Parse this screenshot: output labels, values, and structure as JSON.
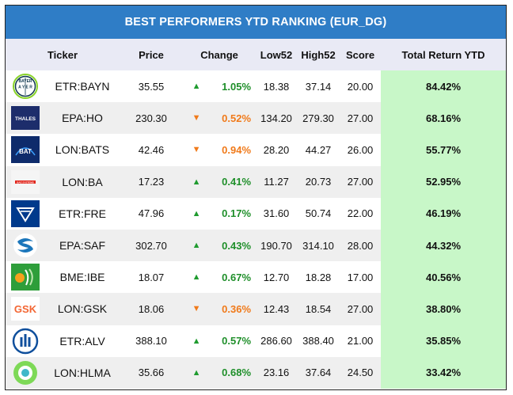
{
  "title": "BEST PERFORMERS YTD RANKING (EUR_DG)",
  "columns": {
    "ticker": "Ticker",
    "price": "Price",
    "change": "Change",
    "low52": "Low52",
    "high52": "High52",
    "score": "Score",
    "total": "Total Return YTD"
  },
  "colors": {
    "header": "#2f7dc6",
    "up": "#1f9b2f",
    "down": "#f07a1a",
    "total_bg": "#c8f7c8"
  },
  "rows": [
    {
      "logo": "bayer-logo-icon",
      "ticker": "ETR:BAYN",
      "price": "35.55",
      "direction": "up",
      "arrow": "▲",
      "change": "1.05%",
      "low52": "18.38",
      "high52": "37.14",
      "score": "20.00",
      "total": "84.42%"
    },
    {
      "logo": "thales-logo-icon",
      "ticker": "EPA:HO",
      "price": "230.30",
      "direction": "down",
      "arrow": "▼",
      "change": "0.52%",
      "low52": "134.20",
      "high52": "279.30",
      "score": "27.00",
      "total": "68.16%"
    },
    {
      "logo": "bat-logo-icon",
      "ticker": "LON:BATS",
      "price": "42.46",
      "direction": "down",
      "arrow": "▼",
      "change": "0.94%",
      "low52": "28.20",
      "high52": "44.27",
      "score": "26.00",
      "total": "55.77%"
    },
    {
      "logo": "bae-systems-logo-icon",
      "ticker": "LON:BA",
      "price": "17.23",
      "direction": "up",
      "arrow": "▲",
      "change": "0.41%",
      "low52": "11.27",
      "high52": "20.73",
      "score": "27.00",
      "total": "52.95%"
    },
    {
      "logo": "fresenius-logo-icon",
      "ticker": "ETR:FRE",
      "price": "47.96",
      "direction": "up",
      "arrow": "▲",
      "change": "0.17%",
      "low52": "31.60",
      "high52": "50.74",
      "score": "22.00",
      "total": "46.19%"
    },
    {
      "logo": "safran-logo-icon",
      "ticker": "EPA:SAF",
      "price": "302.70",
      "direction": "up",
      "arrow": "▲",
      "change": "0.43%",
      "low52": "190.70",
      "high52": "314.10",
      "score": "28.00",
      "total": "44.32%"
    },
    {
      "logo": "iberdrola-logo-icon",
      "ticker": "BME:IBE",
      "price": "18.07",
      "direction": "up",
      "arrow": "▲",
      "change": "0.67%",
      "low52": "12.70",
      "high52": "18.28",
      "score": "17.00",
      "total": "40.56%"
    },
    {
      "logo": "gsk-logo-icon",
      "ticker": "LON:GSK",
      "price": "18.06",
      "direction": "down",
      "arrow": "▼",
      "change": "0.36%",
      "low52": "12.43",
      "high52": "18.54",
      "score": "27.00",
      "total": "38.80%"
    },
    {
      "logo": "allianz-logo-icon",
      "ticker": "ETR:ALV",
      "price": "388.10",
      "direction": "up",
      "arrow": "▲",
      "change": "0.57%",
      "low52": "286.60",
      "high52": "388.40",
      "score": "21.00",
      "total": "35.85%"
    },
    {
      "logo": "halma-logo-icon",
      "ticker": "LON:HLMA",
      "price": "35.66",
      "direction": "up",
      "arrow": "▲",
      "change": "0.68%",
      "low52": "23.16",
      "high52": "37.64",
      "score": "24.50",
      "total": "33.42%"
    }
  ]
}
